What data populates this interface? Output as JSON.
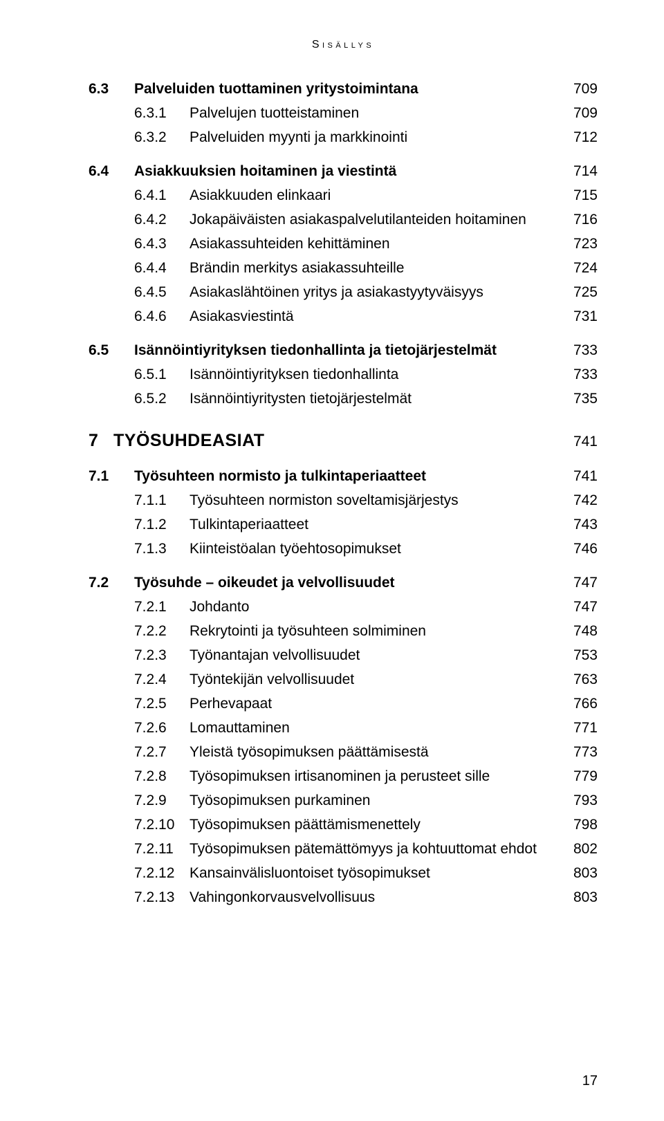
{
  "running_head": "Sisällys",
  "folio": "17",
  "items": [
    {
      "level": 1,
      "num": "6.3",
      "label": "Palveluiden tuottaminen yritystoimintana",
      "page": "709"
    },
    {
      "level": 2,
      "num": "6.3.1",
      "label": "Palvelujen tuotteistaminen",
      "page": "709"
    },
    {
      "level": 2,
      "num": "6.3.2",
      "label": "Palveluiden myynti ja markkinointi",
      "page": "712"
    },
    {
      "level": 1,
      "num": "6.4",
      "label": "Asiakkuuksien hoitaminen ja viestintä",
      "page": "714"
    },
    {
      "level": 2,
      "num": "6.4.1",
      "label": "Asiakkuuden elinkaari",
      "page": "715"
    },
    {
      "level": 2,
      "num": "6.4.2",
      "label": "Jokapäiväisten asiakaspalvelutilanteiden hoitaminen",
      "page": "716"
    },
    {
      "level": 2,
      "num": "6.4.3",
      "label": "Asiakassuhteiden kehittäminen",
      "page": "723"
    },
    {
      "level": 2,
      "num": "6.4.4",
      "label": "Brändin merkitys asiakassuhteille",
      "page": "724"
    },
    {
      "level": 2,
      "num": "6.4.5",
      "label": "Asiakaslähtöinen yritys ja asiakastyytyväisyys",
      "page": "725"
    },
    {
      "level": 2,
      "num": "6.4.6",
      "label": "Asiakasviestintä",
      "page": "731"
    },
    {
      "level": 1,
      "num": "6.5",
      "label": "Isännöintiyrityksen tiedonhallinta ja tietojärjestelmät",
      "page": "733"
    },
    {
      "level": 2,
      "num": "6.5.1",
      "label": "Isännöintiyrityksen tiedonhallinta",
      "page": "733"
    },
    {
      "level": 2,
      "num": "6.5.2",
      "label": "Isännöintiyritysten tietojärjestelmät",
      "page": "735"
    },
    {
      "level": 0,
      "num": "7",
      "label": "TYÖSUHDEASIAT",
      "page": "741"
    },
    {
      "level": 1,
      "num": "7.1",
      "label": "Työsuhteen normisto ja tulkintaperiaatteet",
      "page": "741"
    },
    {
      "level": 2,
      "num": "7.1.1",
      "label": "Työsuhteen normiston soveltamisjärjestys",
      "page": "742"
    },
    {
      "level": 2,
      "num": "7.1.2",
      "label": "Tulkintaperiaatteet",
      "page": "743"
    },
    {
      "level": 2,
      "num": "7.1.3",
      "label": "Kiinteistöalan työehtosopimukset",
      "page": "746"
    },
    {
      "level": 1,
      "num": "7.2",
      "label": "Työsuhde – oikeudet ja velvollisuudet",
      "page": "747"
    },
    {
      "level": 2,
      "num": "7.2.1",
      "label": "Johdanto",
      "page": "747"
    },
    {
      "level": 2,
      "num": "7.2.2",
      "label": "Rekrytointi ja työsuhteen solmiminen",
      "page": "748"
    },
    {
      "level": 2,
      "num": "7.2.3",
      "label": "Työnantajan velvollisuudet",
      "page": "753"
    },
    {
      "level": 2,
      "num": "7.2.4",
      "label": "Työntekijän velvollisuudet",
      "page": "763"
    },
    {
      "level": 2,
      "num": "7.2.5",
      "label": "Perhevapaat",
      "page": "766"
    },
    {
      "level": 2,
      "num": "7.2.6",
      "label": "Lomauttaminen",
      "page": "771"
    },
    {
      "level": 2,
      "num": "7.2.7",
      "label": "Yleistä työsopimuksen päättämisestä",
      "page": "773"
    },
    {
      "level": 2,
      "num": "7.2.8",
      "label": "Työsopimuksen irtisanominen ja perusteet sille",
      "page": "779"
    },
    {
      "level": 2,
      "num": "7.2.9",
      "label": "Työsopimuksen purkaminen",
      "page": "793"
    },
    {
      "level": 2,
      "num": "7.2.10",
      "label": "Työsopimuksen päättämismenettely",
      "page": "798"
    },
    {
      "level": 2,
      "num": "7.2.11",
      "label": "Työsopimuksen pätemättömyys ja kohtuuttomat ehdot",
      "page": "802"
    },
    {
      "level": 2,
      "num": "7.2.12",
      "label": "Kansainvälisluontoiset työsopimukset",
      "page": "803"
    },
    {
      "level": 2,
      "num": "7.2.13",
      "label": "Vahingonkorvausvelvollisuus",
      "page": "803"
    }
  ]
}
